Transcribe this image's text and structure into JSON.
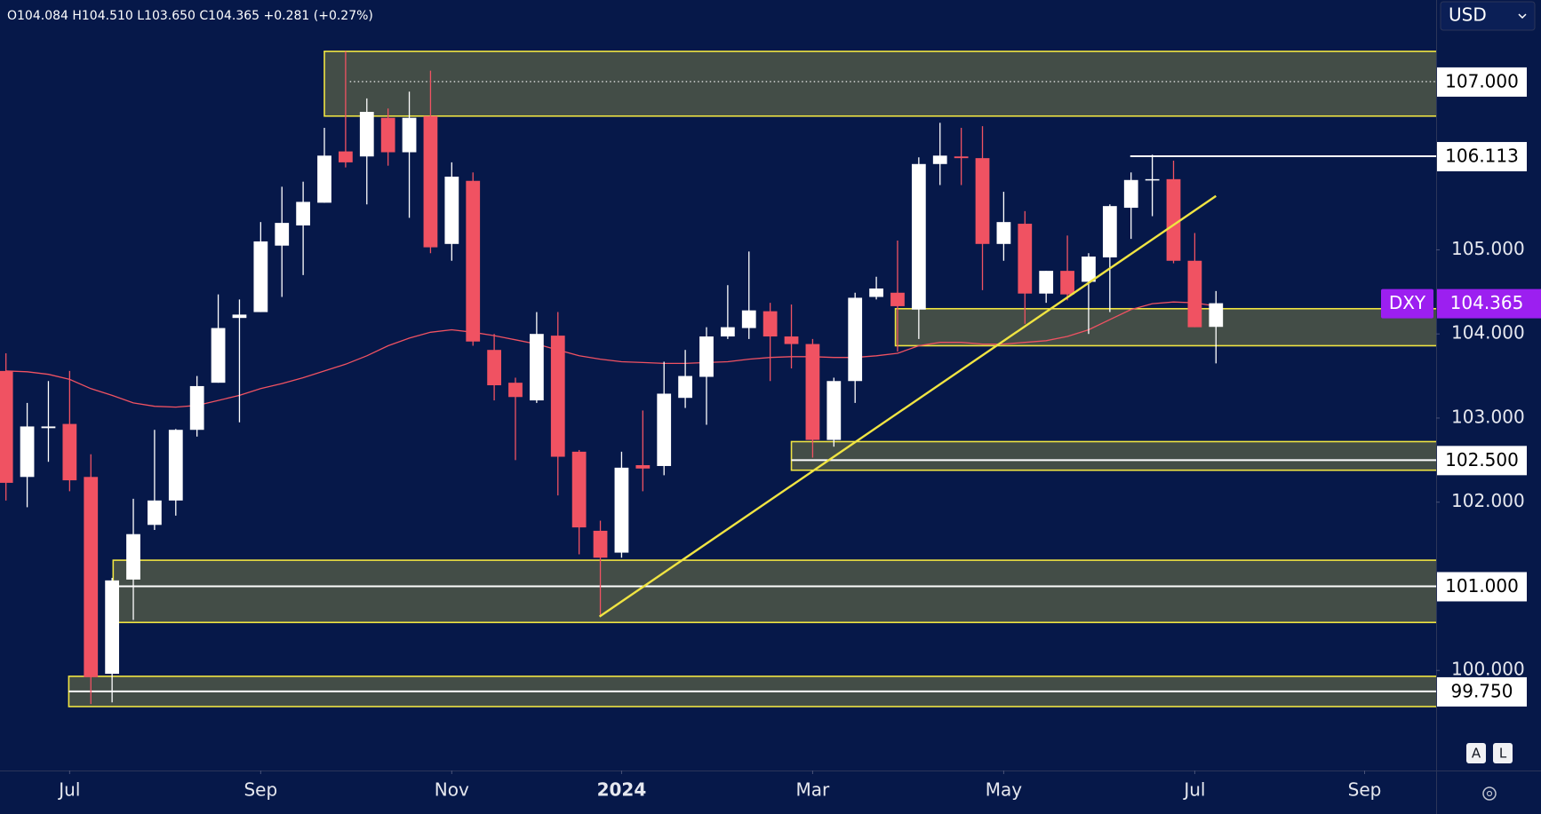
{
  "chart_data": {
    "type": "candlestick",
    "ohlc_text": "O104.084 H104.510 L103.650 C104.365 +0.281 (+0.27%)",
    "currency": "USD",
    "symbol": "DXY",
    "last": {
      "value": 104.365,
      "label": "104.365"
    },
    "buttons": [
      "A",
      "L"
    ],
    "categories": [
      null,
      null,
      null,
      null,
      null,
      null,
      null,
      null,
      null,
      null,
      null,
      null,
      null,
      null,
      null,
      null,
      null,
      null,
      null,
      null,
      null,
      null,
      null,
      null,
      null,
      null,
      null,
      null,
      null,
      null,
      null,
      null,
      null,
      null,
      null,
      null,
      null,
      null,
      null,
      null,
      null,
      null,
      null,
      null,
      null,
      null,
      null,
      null,
      null,
      null,
      null,
      null,
      null,
      null,
      null,
      null,
      null,
      null
    ],
    "open": [
      103.56,
      102.3,
      102.88,
      102.93,
      102.3,
      99.96,
      101.08,
      101.73,
      102.02,
      102.86,
      103.42,
      104.19,
      104.26,
      105.05,
      105.29,
      105.56,
      106.17,
      106.11,
      106.57,
      106.16,
      106.59,
      105.07,
      105.82,
      103.81,
      103.42,
      103.21,
      103.98,
      102.6,
      101.66,
      101.4,
      102.44,
      102.43,
      103.24,
      103.49,
      103.97,
      104.07,
      104.27,
      103.97,
      103.88,
      102.74,
      103.44,
      104.44,
      104.49,
      104.29,
      106.02,
      106.11,
      106.09,
      105.07,
      105.31,
      104.48,
      104.75,
      104.62,
      104.91,
      105.5,
      105.83,
      105.84,
      104.87,
      104.084
    ],
    "high": [
      103.77,
      103.18,
      103.44,
      103.56,
      102.57,
      101.1,
      102.04,
      102.86,
      102.87,
      103.5,
      104.47,
      104.41,
      105.33,
      105.75,
      105.81,
      106.45,
      107.36,
      106.8,
      106.68,
      106.88,
      107.13,
      106.04,
      105.92,
      104.0,
      103.48,
      104.26,
      104.26,
      102.62,
      101.78,
      102.6,
      103.09,
      103.67,
      103.81,
      104.08,
      104.58,
      104.98,
      104.37,
      104.35,
      103.94,
      103.48,
      104.49,
      104.68,
      105.11,
      106.1,
      106.51,
      106.45,
      106.47,
      105.69,
      105.46,
      104.75,
      105.17,
      104.96,
      105.54,
      105.92,
      106.13,
      106.06,
      105.2,
      104.51
    ],
    "low": [
      102.02,
      101.94,
      102.48,
      102.13,
      99.6,
      99.62,
      100.6,
      101.67,
      101.84,
      102.78,
      103.42,
      102.95,
      104.26,
      104.44,
      104.7,
      105.56,
      105.98,
      105.54,
      106.0,
      105.38,
      104.96,
      104.87,
      103.86,
      103.21,
      102.5,
      103.18,
      102.08,
      101.38,
      100.65,
      101.34,
      102.13,
      102.32,
      103.12,
      102.92,
      103.94,
      103.94,
      103.44,
      103.59,
      102.53,
      102.66,
      103.18,
      104.41,
      103.79,
      103.94,
      105.77,
      105.77,
      104.52,
      104.87,
      104.12,
      104.37,
      104.4,
      104.0,
      104.26,
      105.13,
      105.4,
      104.84,
      104.08,
      103.65
    ],
    "close": [
      102.23,
      102.9,
      102.9,
      102.26,
      99.92,
      101.07,
      101.62,
      102.02,
      102.86,
      103.38,
      104.07,
      104.23,
      105.1,
      105.32,
      105.57,
      106.12,
      106.04,
      106.64,
      106.16,
      106.57,
      105.03,
      105.87,
      103.91,
      103.39,
      103.25,
      104.0,
      102.54,
      101.7,
      101.34,
      102.41,
      102.4,
      103.29,
      103.5,
      103.97,
      104.08,
      104.28,
      103.97,
      103.88,
      102.74,
      103.44,
      104.43,
      104.54,
      104.33,
      106.02,
      106.12,
      106.09,
      105.07,
      105.33,
      104.48,
      104.75,
      104.47,
      104.92,
      105.52,
      105.83,
      105.84,
      104.87,
      104.08,
      104.365
    ],
    "ma": [
      103.56,
      103.55,
      103.52,
      103.46,
      103.35,
      103.27,
      103.18,
      103.14,
      103.13,
      103.15,
      103.21,
      103.27,
      103.35,
      103.41,
      103.48,
      103.56,
      103.64,
      103.74,
      103.86,
      103.95,
      104.02,
      104.05,
      104.02,
      103.98,
      103.93,
      103.88,
      103.81,
      103.74,
      103.7,
      103.67,
      103.66,
      103.65,
      103.65,
      103.66,
      103.67,
      103.7,
      103.72,
      103.73,
      103.73,
      103.72,
      103.72,
      103.74,
      103.77,
      103.86,
      103.9,
      103.9,
      103.88,
      103.88,
      103.9,
      103.92,
      103.97,
      104.05,
      104.17,
      104.29,
      104.36,
      104.38,
      104.37,
      104.33
    ],
    "xlim": [
      -0.28,
      67.37
    ],
    "ylim": [
      98.81,
      107.97
    ],
    "xticks": [
      {
        "value": 3,
        "label": "Jul"
      },
      {
        "value": 12,
        "label": "Sep"
      },
      {
        "value": 21,
        "label": "Nov"
      },
      {
        "value": 29,
        "label": "2024"
      },
      {
        "value": 38,
        "label": "Mar"
      },
      {
        "value": 47,
        "label": "May"
      },
      {
        "value": 56,
        "label": "Jul"
      },
      {
        "value": 64,
        "label": "Sep"
      }
    ],
    "yticks": [
      {
        "value": 105,
        "label": "105.000"
      },
      {
        "value": 104,
        "label": "104.000"
      },
      {
        "value": 103,
        "label": "103.000"
      },
      {
        "value": 102,
        "label": "102.000"
      },
      {
        "value": 100,
        "label": "100.000"
      }
    ],
    "zones": [
      {
        "x0": 15.0,
        "y0": 107.36,
        "y1": 106.59
      },
      {
        "x0": 41.9,
        "y0": 104.3,
        "y1": 103.86
      },
      {
        "x0": 37.0,
        "y0": 102.72,
        "y1": 102.38
      },
      {
        "x0": 5.05,
        "y0": 101.31,
        "y1": 100.57
      },
      {
        "x0": 2.96,
        "y0": 99.93,
        "y1": 99.57
      }
    ],
    "levels": [
      {
        "value": 107,
        "label": "107.000",
        "x0": 16.2,
        "style": "dotted"
      },
      {
        "value": 106.113,
        "label": "106.113",
        "x0": 52.96,
        "style": "solid"
      },
      {
        "value": 102.5,
        "label": "102.500",
        "x0": 37.0,
        "style": "solid"
      },
      {
        "value": 101,
        "label": "101.000",
        "x0": 5.05,
        "style": "solid"
      },
      {
        "value": 99.75,
        "label": "99.750",
        "x0": 2.96,
        "style": "solid"
      }
    ],
    "trendline": {
      "x": [
        27.96,
        57.0
      ],
      "values": [
        100.64,
        105.64
      ]
    },
    "colors": {
      "up": "#ffffff",
      "down": "#f05262",
      "ma": "#f05262",
      "zone_border": "#f0e442",
      "zone_fill": "#434d47",
      "trendline": "#f0e442",
      "level": "#ffffff",
      "symbol": "#9c1ff0"
    }
  }
}
